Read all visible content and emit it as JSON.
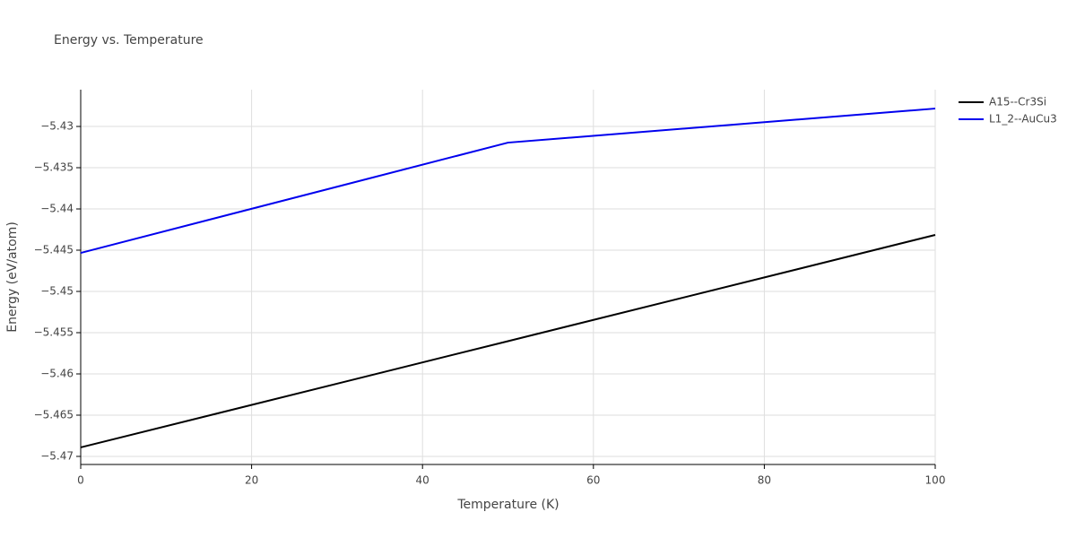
{
  "chart_data": {
    "type": "line",
    "title": "Energy vs. Temperature",
    "x_label": "Temperature (K)",
    "y_label": "Energy (eV/atom)",
    "x": [
      0,
      50,
      100
    ],
    "series": [
      {
        "name": "A15--Cr3Si",
        "color": "#000000",
        "values": [
          -5.46891,
          -5.45603,
          -5.44315
        ]
      },
      {
        "name": "L1_2--AuCu3",
        "color": "#0000ee",
        "values": [
          -5.44533,
          -5.43196,
          -5.42783
        ]
      }
    ],
    "xlim": [
      0,
      100
    ],
    "xticks": [
      0,
      20,
      40,
      60,
      80,
      100
    ],
    "ylim": [
      -5.47098,
      -5.42554
    ],
    "yticks": [
      {
        "value": -5.47,
        "label": "−5.47"
      },
      {
        "value": -5.465,
        "label": "−5.465"
      },
      {
        "value": -5.46,
        "label": "−5.46"
      },
      {
        "value": -5.455,
        "label": "−5.455"
      },
      {
        "value": -5.45,
        "label": "−5.45"
      },
      {
        "value": -5.445,
        "label": "−5.445"
      },
      {
        "value": -5.44,
        "label": "−5.44"
      },
      {
        "value": -5.435,
        "label": "−5.435"
      },
      {
        "value": -5.43,
        "label": "−5.43"
      }
    ],
    "grid": true,
    "legend": "top-right"
  }
}
